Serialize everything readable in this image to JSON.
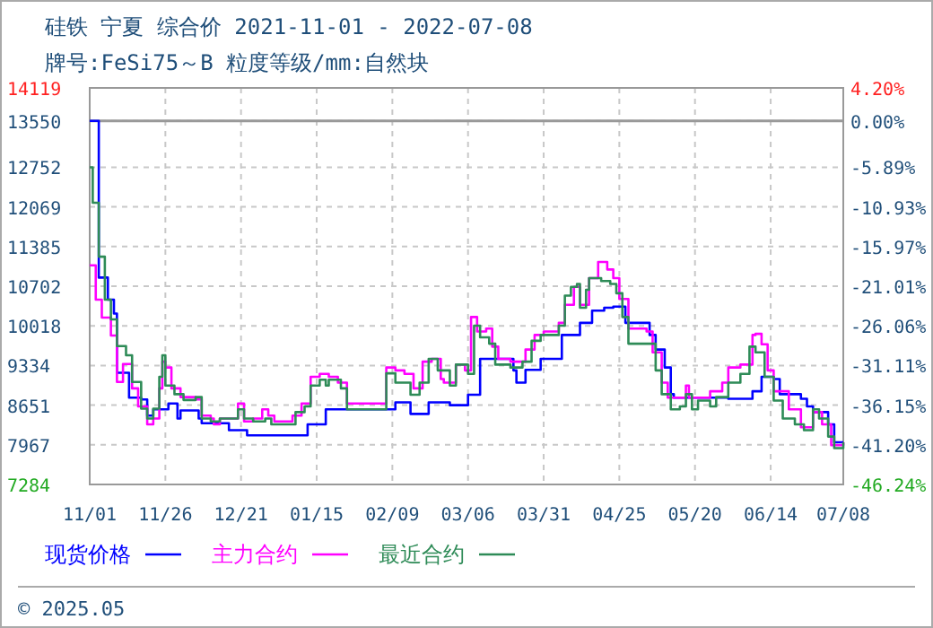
{
  "chart_data": {
    "type": "step",
    "title": "硅铁 宁夏 综合价 2021-11-01 - 2022-07-08",
    "subtitle": "牌号:FeSi75～B 粒度等级/mm:自然块",
    "annotations": [
      "© 2025.05"
    ],
    "xlim": [
      "2021-11-01",
      "2022-07-08"
    ],
    "xticks": [
      {
        "value": "2021-11-01",
        "label": "11/01"
      },
      {
        "value": "2021-11-26",
        "label": "11/26"
      },
      {
        "value": "2021-12-21",
        "label": "12/21"
      },
      {
        "value": "2022-01-15",
        "label": "01/15"
      },
      {
        "value": "2022-02-09",
        "label": "02/09"
      },
      {
        "value": "2022-03-06",
        "label": "03/06"
      },
      {
        "value": "2022-03-31",
        "label": "03/31"
      },
      {
        "value": "2022-04-25",
        "label": "04/25"
      },
      {
        "value": "2022-05-20",
        "label": "05/20"
      },
      {
        "value": "2022-06-14",
        "label": "06/14"
      },
      {
        "value": "2022-07-08",
        "label": "07/08"
      }
    ],
    "ylim": [
      7284,
      14119
    ],
    "yticks": [
      7284,
      7967,
      8651,
      9334,
      10018,
      10702,
      11385,
      12069,
      12752,
      13550,
      14119
    ],
    "y2lim": [
      -46.24,
      4.2
    ],
    "y2ticks": [
      {
        "value": -46.24,
        "label": "-46.24%"
      },
      {
        "value": -41.2,
        "label": "-41.20%"
      },
      {
        "value": -36.15,
        "label": "-36.15%"
      },
      {
        "value": -31.11,
        "label": "-31.11%"
      },
      {
        "value": -26.06,
        "label": "-26.06%"
      },
      {
        "value": -21.01,
        "label": "-21.01%"
      },
      {
        "value": -15.97,
        "label": "-15.97%"
      },
      {
        "value": -10.93,
        "label": "-10.93%"
      },
      {
        "value": -5.89,
        "label": "-5.89%"
      },
      {
        "value": 0,
        "label": "0.00%"
      },
      {
        "value": 4.2,
        "label": "4.20%"
      }
    ],
    "ref_lines": [
      {
        "axis": "y",
        "value": 13550,
        "color": "#999999",
        "line_style": "solid"
      }
    ],
    "grid": true,
    "legend": "bottom",
    "line_style": "solid",
    "marker": "none",
    "series": [
      {
        "name": "现货价格",
        "color": "#0000ff",
        "x": [
          "2021-11-01",
          "2021-11-04",
          "2021-11-07",
          "2021-11-09",
          "2021-11-10",
          "2021-11-14",
          "2021-11-18",
          "2021-11-20",
          "2021-11-22",
          "2021-11-27",
          "2021-11-30",
          "2021-12-01",
          "2021-12-07",
          "2021-12-08",
          "2021-12-17",
          "2021-12-23",
          "2022-01-12",
          "2022-01-18",
          "2022-02-10",
          "2022-02-15",
          "2022-02-21",
          "2022-02-28",
          "2022-03-06",
          "2022-03-10",
          "2022-03-21",
          "2022-03-22",
          "2022-03-25",
          "2022-03-30",
          "2022-04-06",
          "2022-04-12",
          "2022-04-16",
          "2022-04-20",
          "2022-04-23",
          "2022-04-27",
          "2022-05-05",
          "2022-05-07",
          "2022-05-10",
          "2022-05-12",
          "2022-05-13",
          "2022-05-31",
          "2022-06-08",
          "2022-06-11",
          "2022-06-15",
          "2022-06-17",
          "2022-06-24",
          "2022-06-26",
          "2022-06-28",
          "2022-07-03",
          "2022-07-05",
          "2022-07-08"
        ],
        "values": [
          13550,
          10850,
          10470,
          10230,
          9210,
          8780,
          8750,
          8470,
          8580,
          8680,
          8420,
          8560,
          8420,
          8340,
          8220,
          8130,
          8320,
          8580,
          8700,
          8500,
          8700,
          8650,
          8830,
          9450,
          9250,
          9040,
          9260,
          9450,
          9860,
          10070,
          10280,
          10330,
          10350,
          10070,
          9860,
          9610,
          9300,
          8840,
          8780,
          8760,
          8890,
          9140,
          9100,
          8840,
          8760,
          8630,
          8530,
          8320,
          8010,
          8010
        ]
      },
      {
        "name": "主力合约",
        "color": "#ff00ff",
        "x": [
          "2021-11-01",
          "2021-11-03",
          "2021-11-05",
          "2021-11-08",
          "2021-11-10",
          "2021-11-12",
          "2021-11-15",
          "2021-11-17",
          "2021-11-20",
          "2021-11-22",
          "2021-11-24",
          "2021-11-25",
          "2021-11-26",
          "2021-11-28",
          "2021-12-01",
          "2021-12-06",
          "2021-12-08",
          "2021-12-11",
          "2021-12-12",
          "2021-12-14",
          "2021-12-20",
          "2021-12-22",
          "2021-12-25",
          "2021-12-28",
          "2021-12-30",
          "2022-01-01",
          "2022-01-04",
          "2022-01-07",
          "2022-01-10",
          "2022-01-13",
          "2022-01-16",
          "2022-01-19",
          "2022-01-22",
          "2022-01-25",
          "2022-02-06",
          "2022-02-07",
          "2022-02-10",
          "2022-02-13",
          "2022-02-16",
          "2022-02-19",
          "2022-02-22",
          "2022-02-25",
          "2022-02-26",
          "2022-03-02",
          "2022-03-05",
          "2022-03-07",
          "2022-03-09",
          "2022-03-12",
          "2022-03-14",
          "2022-03-16",
          "2022-03-20",
          "2022-03-25",
          "2022-03-28",
          "2022-03-31",
          "2022-04-05",
          "2022-04-07",
          "2022-04-10",
          "2022-04-12",
          "2022-04-15",
          "2022-04-18",
          "2022-04-21",
          "2022-04-23",
          "2022-04-25",
          "2022-04-28",
          "2022-05-04",
          "2022-05-06",
          "2022-05-09",
          "2022-05-11",
          "2022-05-17",
          "2022-05-18",
          "2022-05-25",
          "2022-05-29",
          "2022-05-31",
          "2022-06-04",
          "2022-06-08",
          "2022-06-09",
          "2022-06-11",
          "2022-06-13",
          "2022-06-15",
          "2022-06-20",
          "2022-06-24",
          "2022-06-28",
          "2022-07-01",
          "2022-07-04",
          "2022-07-08"
        ],
        "values": [
          11060,
          10470,
          10160,
          9850,
          9050,
          9360,
          8940,
          8630,
          8320,
          8420,
          8940,
          9400,
          9300,
          8940,
          8790,
          8750,
          8470,
          8420,
          8320,
          8420,
          8680,
          8370,
          8420,
          8580,
          8470,
          8370,
          8370,
          8470,
          8680,
          9140,
          9190,
          9140,
          9040,
          8680,
          8680,
          9300,
          9250,
          9190,
          8940,
          9400,
          9450,
          9100,
          9040,
          9350,
          9250,
          10170,
          9920,
          9970,
          9660,
          9450,
          9400,
          9610,
          9860,
          9920,
          10070,
          10380,
          10690,
          10380,
          10840,
          11120,
          10990,
          10840,
          10480,
          9970,
          9920,
          9560,
          9040,
          8780,
          8990,
          8780,
          8890,
          9040,
          9300,
          9350,
          9860,
          9880,
          9700,
          9250,
          8890,
          8580,
          8270,
          8530,
          8320,
          7960,
          8010
        ]
      },
      {
        "name": "最近合约",
        "color": "#2e8b57",
        "x": [
          "2021-11-01",
          "2021-11-02",
          "2021-11-04",
          "2021-11-06",
          "2021-11-08",
          "2021-11-10",
          "2021-11-13",
          "2021-11-15",
          "2021-11-18",
          "2021-11-20",
          "2021-11-22",
          "2021-11-24",
          "2021-11-25",
          "2021-11-26",
          "2021-11-29",
          "2021-12-02",
          "2021-12-06",
          "2021-12-08",
          "2021-12-11",
          "2021-12-14",
          "2021-12-20",
          "2021-12-22",
          "2021-12-25",
          "2021-12-29",
          "2021-12-31",
          "2022-01-05",
          "2022-01-08",
          "2022-01-11",
          "2022-01-13",
          "2022-01-16",
          "2022-01-18",
          "2022-01-19",
          "2022-01-23",
          "2022-01-25",
          "2022-02-06",
          "2022-02-07",
          "2022-02-10",
          "2022-02-15",
          "2022-02-18",
          "2022-02-21",
          "2022-02-24",
          "2022-02-28",
          "2022-03-02",
          "2022-03-06",
          "2022-03-08",
          "2022-03-10",
          "2022-03-13",
          "2022-03-15",
          "2022-03-20",
          "2022-03-24",
          "2022-03-27",
          "2022-03-30",
          "2022-04-05",
          "2022-04-07",
          "2022-04-09",
          "2022-04-11",
          "2022-04-12",
          "2022-04-14",
          "2022-04-15",
          "2022-04-19",
          "2022-04-22",
          "2022-04-24",
          "2022-04-26",
          "2022-04-28",
          "2022-05-05",
          "2022-05-07",
          "2022-05-09",
          "2022-05-12",
          "2022-05-15",
          "2022-05-17",
          "2022-05-19",
          "2022-05-21",
          "2022-05-25",
          "2022-05-27",
          "2022-05-31",
          "2022-06-04",
          "2022-06-07",
          "2022-06-09",
          "2022-06-12",
          "2022-06-15",
          "2022-06-18",
          "2022-06-22",
          "2022-06-25",
          "2022-06-28",
          "2022-06-30",
          "2022-07-03",
          "2022-07-05",
          "2022-07-08"
        ],
        "values": [
          12750,
          12140,
          11210,
          10470,
          10130,
          9670,
          9510,
          9050,
          8590,
          8420,
          8590,
          9140,
          9510,
          8990,
          8840,
          8740,
          8790,
          8420,
          8370,
          8420,
          8580,
          8420,
          8370,
          8420,
          8320,
          8320,
          8530,
          8630,
          8990,
          9090,
          8990,
          9090,
          8940,
          8580,
          8580,
          9200,
          9040,
          8830,
          9040,
          9450,
          9250,
          8990,
          9350,
          9190,
          10020,
          9820,
          9710,
          9350,
          9300,
          9400,
          9760,
          9860,
          10020,
          10540,
          10690,
          10740,
          10330,
          10640,
          10840,
          10790,
          10740,
          10580,
          10170,
          9710,
          9710,
          9250,
          8840,
          8580,
          8630,
          8840,
          8580,
          8730,
          8630,
          8790,
          9040,
          9190,
          9660,
          9560,
          9140,
          8730,
          8420,
          8320,
          8220,
          8580,
          8420,
          8110,
          7910,
          8010
        ]
      }
    ]
  }
}
